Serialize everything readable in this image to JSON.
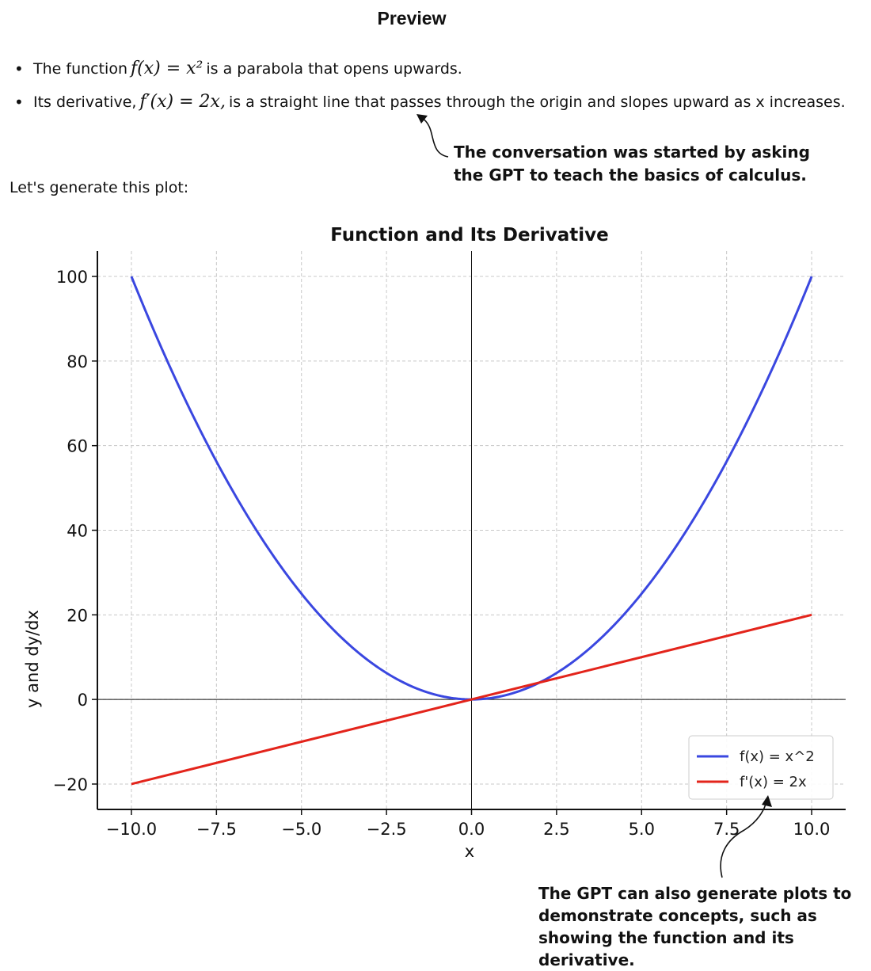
{
  "preview": {
    "title": "Preview"
  },
  "bullets": [
    {
      "prefix": "The function",
      "math": "f(x) = x²",
      "rest": "is a parabola that opens upwards."
    },
    {
      "prefix": "Its derivative,",
      "math": "f′(x) = 2x,",
      "rest": "is a straight line that passes through the origin and slopes upward as x increases."
    }
  ],
  "annotations": {
    "top": "The conversation was started by asking the GPT to teach the basics of calculus.",
    "bottom": "The GPT can also generate plots to demonstrate concepts, such as showing the function and its derivative."
  },
  "prompt_text": "Let's generate this plot:",
  "chart_data": {
    "type": "line",
    "title": "Function and Its Derivative",
    "xlabel": "x",
    "ylabel": "y and dy/dx",
    "xlim": [
      -11,
      11
    ],
    "ylim": [
      -26,
      106
    ],
    "xticks": [
      -10,
      -7.5,
      -5,
      -2.5,
      0,
      2.5,
      5,
      7.5,
      10
    ],
    "xtick_labels": [
      "−10.0",
      "−7.5",
      "−5.0",
      "−2.5",
      "0.0",
      "2.5",
      "5.0",
      "7.5",
      "10.0"
    ],
    "yticks": [
      -20,
      0,
      20,
      40,
      60,
      80,
      100
    ],
    "ytick_labels": [
      "−20",
      "0",
      "20",
      "40",
      "60",
      "80",
      "100"
    ],
    "grid": true,
    "legend": "bottom-right",
    "series": [
      {
        "name": "f(x) = x^2",
        "color": "#3a47e0",
        "x": [
          -10,
          -9,
          -8,
          -7,
          -6,
          -5,
          -4,
          -3,
          -2,
          -1,
          0,
          1,
          2,
          3,
          4,
          5,
          6,
          7,
          8,
          9,
          10
        ],
        "y": [
          100,
          81,
          64,
          49,
          36,
          25,
          16,
          9,
          4,
          1,
          0,
          1,
          4,
          9,
          16,
          25,
          36,
          49,
          64,
          81,
          100
        ]
      },
      {
        "name": "f'(x) = 2x",
        "color": "#e3241b",
        "x": [
          -10,
          10
        ],
        "y": [
          -20,
          20
        ]
      }
    ]
  }
}
